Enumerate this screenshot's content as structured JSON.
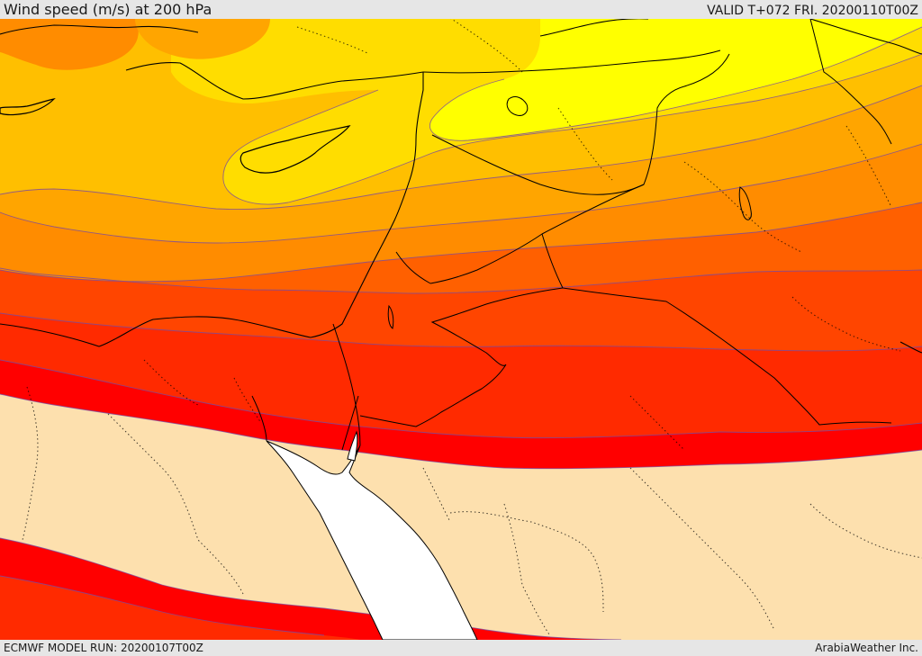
{
  "header": {
    "title": "Wind speed (m/s) at 200 hPa",
    "valid_time": "VALID T+072 FRI. 20200110T00Z"
  },
  "footer": {
    "model_run": "ECMWF MODEL RUN: 20200107T00Z",
    "credit": "ArabiaWeather Inc."
  },
  "map": {
    "variable": "wind speed",
    "level_hpa": 200,
    "units": "m/s",
    "shading_colors": [
      "#fde0ae",
      "#ff0000",
      "#ff2a00",
      "#ff4500",
      "#ff6000",
      "#ff8c00",
      "#ffa500",
      "#ffbf00",
      "#ffdd00",
      "#ffff00"
    ],
    "land_color": "#fde0ae",
    "sea_color": "#ffffff",
    "contour_color": "#7a4aa0",
    "boundary_color": "#000000"
  }
}
